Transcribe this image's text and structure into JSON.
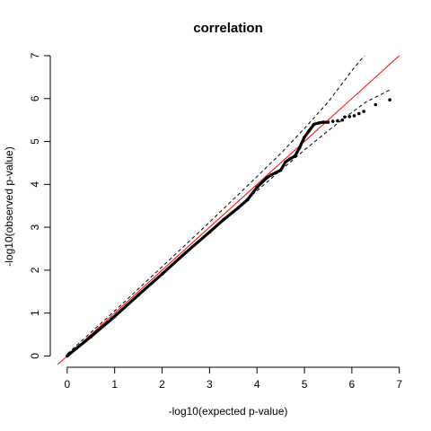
{
  "chart_data": {
    "type": "scatter",
    "title": "correlation",
    "xlabel": "-log10(expected p-value)",
    "ylabel": "-log10(observed p-value)",
    "xlim": [
      -0.3,
      7.1
    ],
    "ylim": [
      -0.2,
      7.0
    ],
    "x_ticks": [
      "0",
      "1",
      "2",
      "3",
      "4",
      "5",
      "6",
      "7"
    ],
    "y_ticks": [
      "0",
      "1",
      "2",
      "3",
      "4",
      "5",
      "6",
      "7"
    ],
    "grid": false,
    "reference_line": {
      "color": "#ff0000",
      "slope": 1,
      "intercept": 0
    },
    "confidence_band": {
      "style": "dashed",
      "x": [
        0,
        1,
        2,
        3,
        4,
        4.5,
        5,
        5.5,
        6,
        6.3,
        6.8
      ],
      "upper": [
        0.05,
        1.05,
        2.08,
        3.12,
        4.18,
        4.72,
        5.3,
        5.92,
        6.65,
        7.05,
        7.4
      ],
      "lower": [
        0.0,
        0.96,
        1.93,
        2.9,
        3.85,
        4.33,
        4.8,
        5.25,
        5.68,
        5.92,
        6.2
      ]
    },
    "series": [
      {
        "color": "#000000",
        "x": [
          0,
          0.2,
          0.5,
          1.0,
          1.5,
          2.0,
          2.5,
          3.0,
          3.3,
          3.6,
          3.8,
          4.0,
          4.2,
          4.3,
          4.5,
          4.6,
          4.7,
          4.8,
          4.9,
          5.0,
          5.1,
          5.2,
          5.3,
          5.4,
          5.5,
          5.6,
          5.7,
          5.8,
          5.85,
          5.95,
          6.05,
          6.15,
          6.25,
          6.5,
          6.8
        ],
        "y": [
          0,
          0.18,
          0.45,
          0.92,
          1.42,
          1.91,
          2.41,
          2.89,
          3.18,
          3.45,
          3.64,
          3.93,
          4.15,
          4.22,
          4.33,
          4.52,
          4.6,
          4.66,
          4.86,
          5.1,
          5.25,
          5.4,
          5.43,
          5.45,
          5.45,
          5.47,
          5.48,
          5.5,
          5.57,
          5.58,
          5.6,
          5.65,
          5.7,
          5.86,
          5.97
        ]
      }
    ]
  }
}
